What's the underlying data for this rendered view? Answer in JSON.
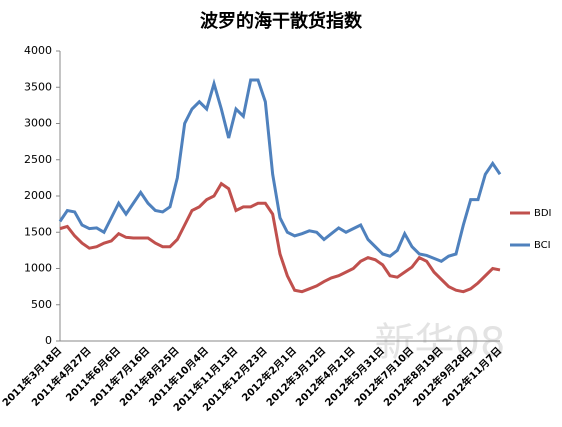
{
  "chart_data": {
    "type": "line",
    "title": "波罗的海干散货指数",
    "categories": [
      "2011年3月18日",
      null,
      null,
      null,
      "2011年4月27日",
      null,
      null,
      null,
      "2011年6月6日",
      null,
      null,
      null,
      "2011年7月16日",
      null,
      null,
      null,
      "2011年8月25日",
      null,
      null,
      null,
      "2011年10月4日",
      null,
      null,
      null,
      "2011年11月13日",
      null,
      null,
      null,
      "2011年12月23日",
      null,
      null,
      null,
      "2012年2月1日",
      null,
      null,
      null,
      "2012年3月12日",
      null,
      null,
      null,
      "2012年4月21日",
      null,
      null,
      null,
      "2012年5月31日",
      null,
      null,
      null,
      "2012年7月10日",
      null,
      null,
      null,
      "2012年8月19日",
      null,
      null,
      null,
      "2012年9月28日",
      null,
      null,
      null,
      "2012年11月7日"
    ],
    "series": [
      {
        "name": "BDI",
        "color": "#c0504d",
        "values": [
          1550,
          1580,
          1450,
          1350,
          1280,
          1300,
          1350,
          1380,
          1480,
          1430,
          1420,
          1420,
          1420,
          1350,
          1300,
          1300,
          1400,
          1600,
          1800,
          1850,
          1950,
          2000,
          2170,
          2100,
          1800,
          1850,
          1850,
          1900,
          1900,
          1750,
          1200,
          900,
          700,
          680,
          720,
          760,
          820,
          870,
          900,
          950,
          1000,
          1100,
          1150,
          1120,
          1050,
          900,
          880,
          950,
          1020,
          1150,
          1100,
          950,
          850,
          750,
          700,
          680,
          720,
          800,
          900,
          1000,
          980
        ]
      },
      {
        "name": "BCI",
        "color": "#4f81bd",
        "values": [
          1650,
          1800,
          1780,
          1600,
          1550,
          1560,
          1500,
          1700,
          1900,
          1750,
          1900,
          2050,
          1900,
          1800,
          1780,
          1850,
          2250,
          3000,
          3200,
          3300,
          3200,
          3550,
          3200,
          2800,
          3200,
          3100,
          3600,
          3600,
          3300,
          2300,
          1700,
          1500,
          1450,
          1480,
          1520,
          1500,
          1400,
          1480,
          1560,
          1500,
          1550,
          1600,
          1400,
          1300,
          1200,
          1170,
          1250,
          1480,
          1300,
          1200,
          1180,
          1140,
          1100,
          1170,
          1200,
          1600,
          1950,
          1950,
          2300,
          2450,
          2300
        ]
      }
    ],
    "ylim": [
      0,
      4000
    ],
    "yticks": [
      0,
      500,
      1000,
      1500,
      2000,
      2500,
      3000,
      3500,
      4000
    ],
    "legend": "right",
    "watermark": "新华08"
  }
}
